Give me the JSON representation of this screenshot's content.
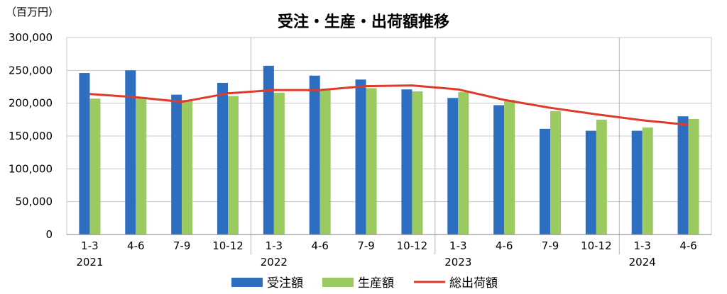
{
  "chart_data": {
    "type": "bar",
    "title": "受注・生産・出荷額推移",
    "unit_label": "（百万円）",
    "categories": [
      "1-3",
      "4-6",
      "7-9",
      "10-12",
      "1-3",
      "4-6",
      "7-9",
      "10-12",
      "1-3",
      "4-6",
      "7-9",
      "10-12",
      "1-3",
      "4-6"
    ],
    "years": [
      {
        "label": "2021",
        "start": 0,
        "end": 3
      },
      {
        "label": "2022",
        "start": 4,
        "end": 7
      },
      {
        "label": "2023",
        "start": 8,
        "end": 11
      },
      {
        "label": "2024",
        "start": 12,
        "end": 13
      }
    ],
    "series": [
      {
        "name": "受注額",
        "type": "bar",
        "color": "#2E6EC0",
        "values": [
          246000,
          250000,
          213000,
          231000,
          257000,
          242000,
          236000,
          221000,
          208000,
          197000,
          161000,
          158000,
          158000,
          180000
        ]
      },
      {
        "name": "生産額",
        "type": "bar",
        "color": "#9BCB60",
        "values": [
          207000,
          207000,
          205000,
          211000,
          216000,
          220000,
          223000,
          218000,
          217000,
          205000,
          188000,
          175000,
          163000,
          176000
        ]
      },
      {
        "name": "総出荷額",
        "type": "line",
        "color": "#E03A2A",
        "values": [
          214000,
          209000,
          202000,
          215000,
          220000,
          220000,
          226000,
          227000,
          221000,
          205000,
          193000,
          183000,
          174000,
          167000
        ]
      }
    ],
    "ylim": [
      0,
      300000
    ],
    "yticks": [
      0,
      50000,
      100000,
      150000,
      200000,
      250000,
      300000
    ],
    "ytick_labels": [
      "0",
      "50,000",
      "100,000",
      "150,000",
      "200,000",
      "250,000",
      "300,000"
    ],
    "grid": true,
    "legend_position": "bottom"
  }
}
